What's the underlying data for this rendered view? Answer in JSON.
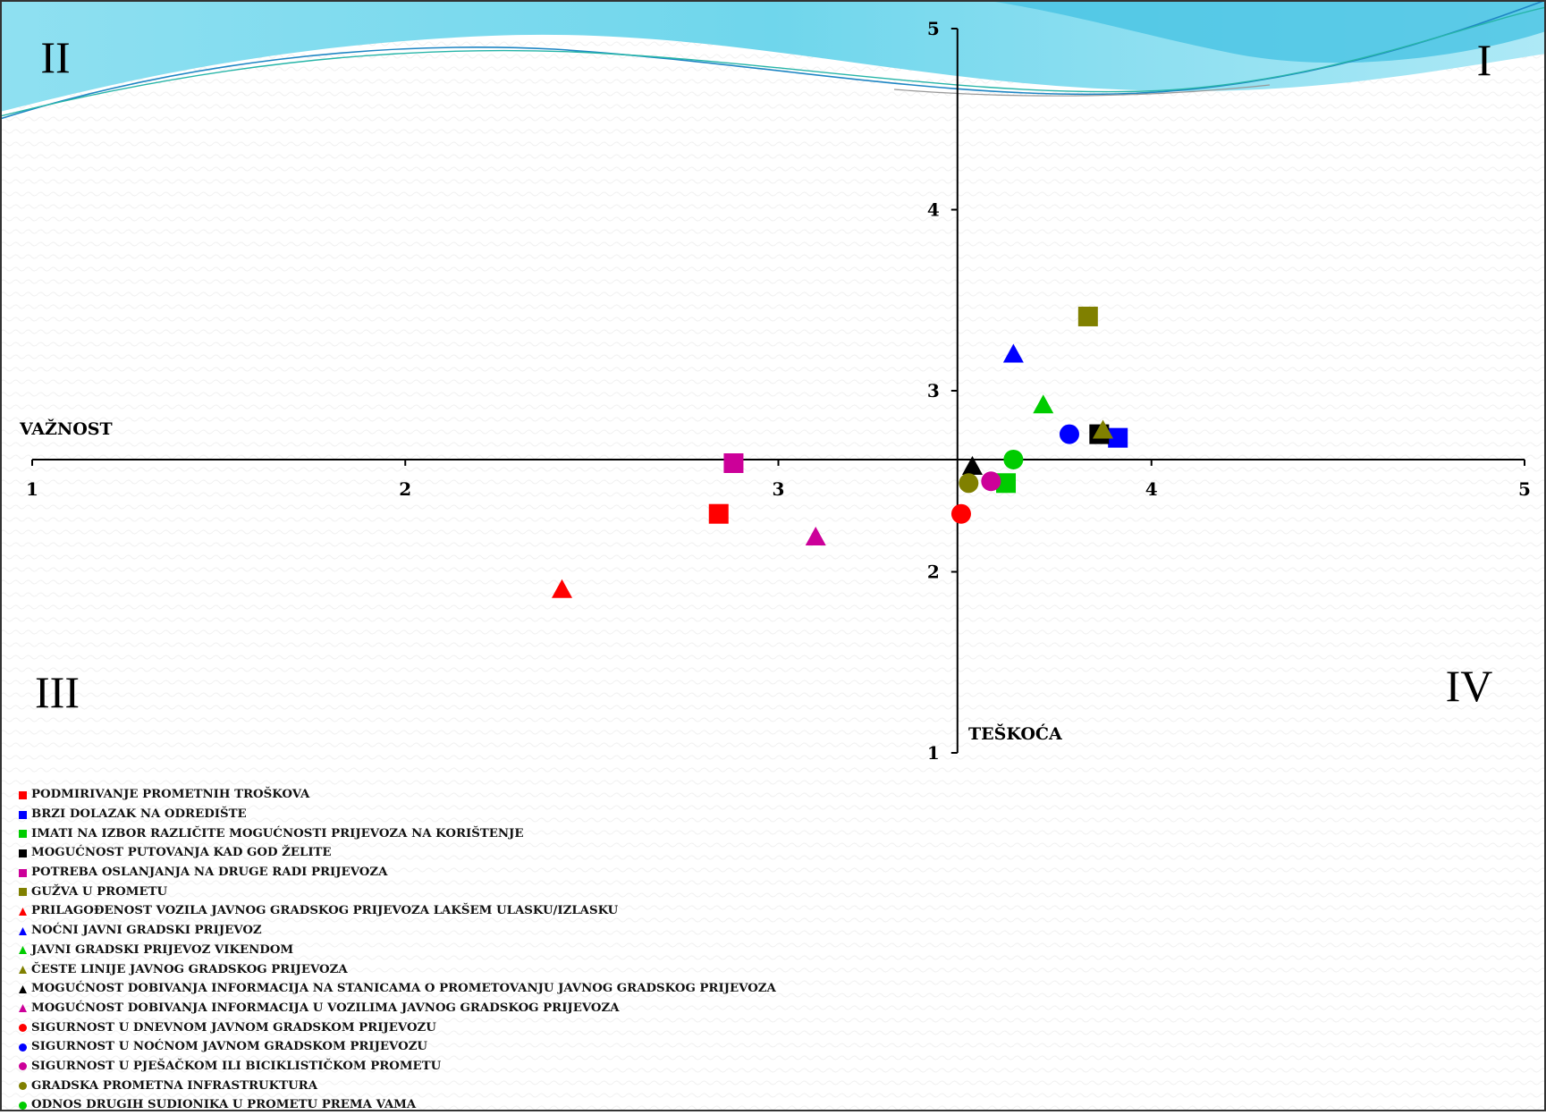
{
  "chart_data": {
    "type": "scatter",
    "xlabel": "VAŽNOST",
    "ylabel": "TEŠKOĆA",
    "xlim": [
      1,
      5
    ],
    "ylim": [
      1,
      5
    ],
    "x_ticks": [
      "1",
      "2",
      "3",
      "4",
      "5"
    ],
    "y_ticks": [
      "1",
      "2",
      "3",
      "4",
      "5"
    ],
    "x_axis_crosses_y_at": 2.62,
    "y_axis_crosses_x_at": 3.48,
    "quadrant_labels": [
      "I",
      "II",
      "III",
      "IV"
    ],
    "legend_position": "bottom-left",
    "grid": false,
    "series": [
      {
        "name": "PODMIRIVANJE PROMETNIH TROŠKOVA",
        "marker": "square",
        "color": "#ff0000",
        "x": 2.84,
        "y": 2.32
      },
      {
        "name": "BRZI DOLAZAK NA ODREDIŠTE",
        "marker": "square",
        "color": "#0000ff",
        "x": 3.91,
        "y": 2.74
      },
      {
        "name": "IMATI NA IZBOR RAZLIČITE MOGUĆNOSTI PRIJEVOZA NA KORIŠTENJE",
        "marker": "square",
        "color": "#00cc00",
        "x": 3.61,
        "y": 2.49
      },
      {
        "name": "MOGUĆNOST PUTOVANJA KAD GOD ŽELITE",
        "marker": "square",
        "color": "#000000",
        "x": 3.86,
        "y": 2.76
      },
      {
        "name": "POTREBA OSLANJANJA NA DRUGE RADI PRIJEVOZA",
        "marker": "square",
        "color": "#cc0099",
        "x": 2.88,
        "y": 2.6
      },
      {
        "name": "GUŽVA U PROMETU",
        "marker": "square",
        "color": "#808000",
        "x": 3.83,
        "y": 3.41
      },
      {
        "name": "PRILAGOĐENOST VOZILA JAVNOG GRADSKOG PRIJEVOZA LAKŠEM ULASKU/IZLASKU",
        "marker": "triangle",
        "color": "#ff0000",
        "x": 2.42,
        "y": 1.9
      },
      {
        "name": "NOĆNI JAVNI GRADSKI PRIJEVOZ",
        "marker": "triangle",
        "color": "#0000ff",
        "x": 3.63,
        "y": 3.2
      },
      {
        "name": "JAVNI GRADSKI PRIJEVOZ VIKENDOM",
        "marker": "triangle",
        "color": "#00cc00",
        "x": 3.71,
        "y": 2.92
      },
      {
        "name": "ČESTE LINIJE JAVNOG GRADSKOG PRIJEVOZA",
        "marker": "triangle",
        "color": "#808000",
        "x": 3.87,
        "y": 2.78
      },
      {
        "name": "MOGUĆNOST DOBIVANJA INFORMACIJA NA STANICAMA O PROMETOVANJU JAVNOG GRADSKOG PRIJEVOZA",
        "marker": "triangle",
        "color": "#000000",
        "x": 3.52,
        "y": 2.58
      },
      {
        "name": "MOGUĆNOST DOBIVANJA INFORMACIJA U VOZILIMA JAVNOG GRADSKOG PRIJEVOZA",
        "marker": "triangle",
        "color": "#cc0099",
        "x": 3.1,
        "y": 2.19
      },
      {
        "name": "SIGURNOST U DNEVNOM JAVNOM GRADSKOM PRIJEVOZU",
        "marker": "circle",
        "color": "#ff0000",
        "x": 3.49,
        "y": 2.32
      },
      {
        "name": "SIGURNOST U NOĆNOM JAVNOM GRADSKOM PRIJEVOZU",
        "marker": "circle",
        "color": "#0000ff",
        "x": 3.78,
        "y": 2.76
      },
      {
        "name": "SIGURNOST U PJEŠAČKOM ILI BICIKLISTIČKOM PROMETU",
        "marker": "circle",
        "color": "#cc0099",
        "x": 3.57,
        "y": 2.5
      },
      {
        "name": "GRADSKA PROMETNA INFRASTRUKTURA",
        "marker": "circle",
        "color": "#808000",
        "x": 3.51,
        "y": 2.49
      },
      {
        "name": "ODNOS DRUGIH SUDIONIKA U PROMETU PREMA VAMA",
        "marker": "circle",
        "color": "#00cc00",
        "x": 3.63,
        "y": 2.62
      }
    ]
  },
  "colors": {
    "wave_light": "#aee9f6",
    "wave_mid": "#5fd2ea",
    "wave_dark": "#1e86c4"
  }
}
